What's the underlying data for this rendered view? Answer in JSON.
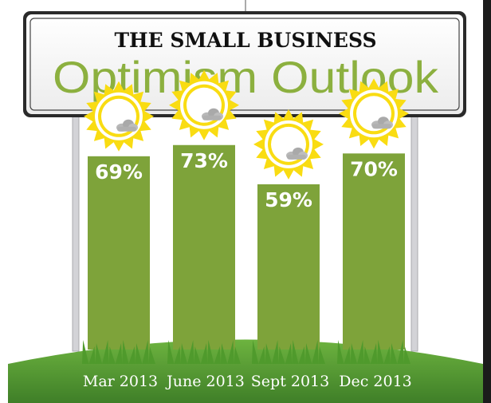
{
  "title": {
    "line1": "THE SMALL BUSINESS",
    "line2": "Optimism Outlook"
  },
  "colors": {
    "bar": "#7ea33a",
    "sun": "#f9dc12",
    "ground": "#589b34",
    "frame": "#2a2a2a",
    "title_accent": "#8cb03f"
  },
  "chart_data": {
    "type": "bar",
    "title": "THE SMALL BUSINESS Optimism Outlook",
    "categories": [
      "Mar 2013",
      "June 2013",
      "Sept 2013",
      "Dec 2013"
    ],
    "values": [
      69,
      73,
      59,
      70
    ],
    "value_labels": [
      "69%",
      "73%",
      "59%",
      "70%"
    ],
    "unit": "%",
    "ylim": [
      0,
      100
    ],
    "grid": false,
    "icons": [
      "sun-with-cloud-icon",
      "sun-with-cloud-icon",
      "sun-with-cloud-icon",
      "sun-with-cloud-icon"
    ]
  }
}
